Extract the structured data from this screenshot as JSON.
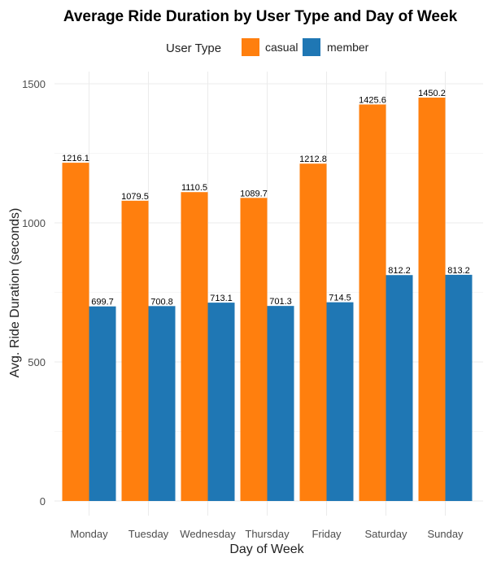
{
  "chart_data": {
    "type": "bar",
    "title": "Average Ride Duration by User Type and Day of Week",
    "xlabel": "Day of Week",
    "ylabel": "Avg. Ride Duration (seconds)",
    "categories": [
      "Monday",
      "Tuesday",
      "Wednesday",
      "Thursday",
      "Friday",
      "Saturday",
      "Sunday"
    ],
    "series": [
      {
        "name": "casual",
        "color": "#ff7f0e",
        "values": [
          1216.1,
          1079.5,
          1110.5,
          1089.7,
          1212.8,
          1425.6,
          1450.2
        ],
        "labels": [
          "1216.1",
          "1079.5",
          "1110.5",
          "1089.7",
          "1212.8",
          "1425.6",
          "1450.2"
        ]
      },
      {
        "name": "member",
        "color": "#1f77b4",
        "values": [
          699.7,
          700.8,
          713.1,
          701.3,
          714.5,
          812.2,
          813.2
        ],
        "labels": [
          "699.7",
          "700.8",
          "713.1",
          "701.3",
          "714.5",
          "812.2",
          "813.2"
        ]
      }
    ],
    "ylim": [
      0,
      1550
    ],
    "yticks": [
      0,
      500,
      1000,
      1500
    ],
    "grid": true,
    "legend": {
      "title": "User Type",
      "position": "top"
    }
  }
}
